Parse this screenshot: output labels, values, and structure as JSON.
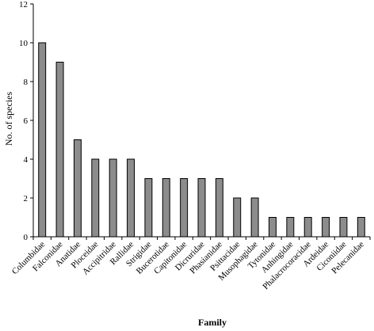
{
  "chart_data": {
    "type": "bar",
    "title": "",
    "xlabel": "Family",
    "ylabel": "No. of species",
    "ylim": [
      0,
      12
    ],
    "yticks": [
      0,
      2,
      4,
      6,
      8,
      10,
      12
    ],
    "grid": false,
    "legend": "none",
    "bar_color": "#8c8c8c",
    "bar_edge_color": "#000000",
    "categories": [
      "Columbidae",
      "Falconidae",
      "Anatidae",
      "Ploceidae",
      "Accipitridae",
      "Rallidae",
      "Strigidae",
      "Bucerotidae",
      "Capitonidae",
      "Dicruridae",
      "Phasianidae",
      "Psittacidae",
      "Musophagidae",
      "Tytonidae",
      "Anhingidae",
      "Phalacrocoracidae",
      "Ardeidae",
      "Ciconiidae",
      "Pelecanidae"
    ],
    "values": [
      10,
      9,
      5,
      4,
      4,
      4,
      3,
      3,
      3,
      3,
      3,
      2,
      2,
      1,
      1,
      1,
      1,
      1,
      1
    ]
  }
}
